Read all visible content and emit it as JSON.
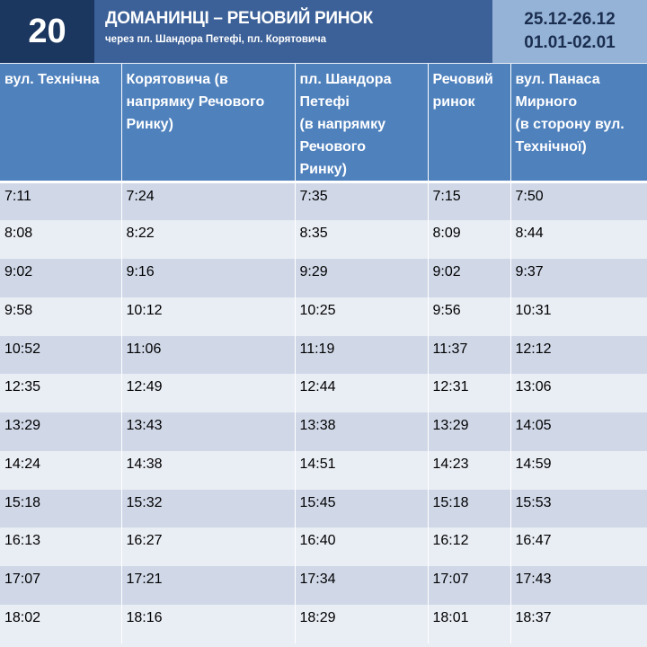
{
  "header": {
    "route_number": "20",
    "title": "ДОМАНИНЦІ – РЕЧОВИЙ РИНОК",
    "subtitle": "через пл. Шандора Петефі, пл. Корятовича",
    "dates": [
      "25.12-26.12",
      "01.01-02.01"
    ]
  },
  "colors": {
    "route_box": "#1b365f",
    "title_bar": "#3c6198",
    "date_box": "#95b3d7",
    "table_header": "#4f81bd",
    "row_odd": "#d0d8e8",
    "row_even": "#e9edf4"
  },
  "table": {
    "columns": [
      [
        "вул. Технічна"
      ],
      [
        "Корятовича (в",
        "напрямку Речового",
        "Ринку)"
      ],
      [
        "пл. Шандора",
        "Петефі",
        "(в напрямку",
        "Речового",
        "Ринку)"
      ],
      [
        "Речовий",
        "ринок"
      ],
      [
        "вул. Панаса",
        "Мирного",
        "(в сторону вул.",
        "Технічної)"
      ]
    ],
    "rows": [
      [
        "7:11",
        "7:24",
        "7:35",
        "7:15",
        "7:50"
      ],
      [
        "8:08",
        "8:22",
        "8:35",
        "8:09",
        "8:44"
      ],
      [
        "9:02",
        "9:16",
        "9:29",
        "9:02",
        "9:37"
      ],
      [
        "9:58",
        "10:12",
        "10:25",
        "9:56",
        "10:31"
      ],
      [
        "10:52",
        "11:06",
        "11:19",
        "11:37",
        "12:12"
      ],
      [
        "12:35",
        "12:49",
        "12:44",
        "12:31",
        "13:06"
      ],
      [
        "13:29",
        "13:43",
        "13:38",
        "13:29",
        "14:05"
      ],
      [
        "14:24",
        "14:38",
        "14:51",
        "14:23",
        "14:59"
      ],
      [
        "15:18",
        "15:32",
        "15:45",
        "15:18",
        "15:53"
      ],
      [
        "16:13",
        "16:27",
        "16:40",
        "16:12",
        "16:47"
      ],
      [
        "17:07",
        "17:21",
        "17:34",
        "17:07",
        "17:43"
      ],
      [
        "18:02",
        "18:16",
        "18:29",
        "18:01",
        "18:37"
      ]
    ]
  }
}
